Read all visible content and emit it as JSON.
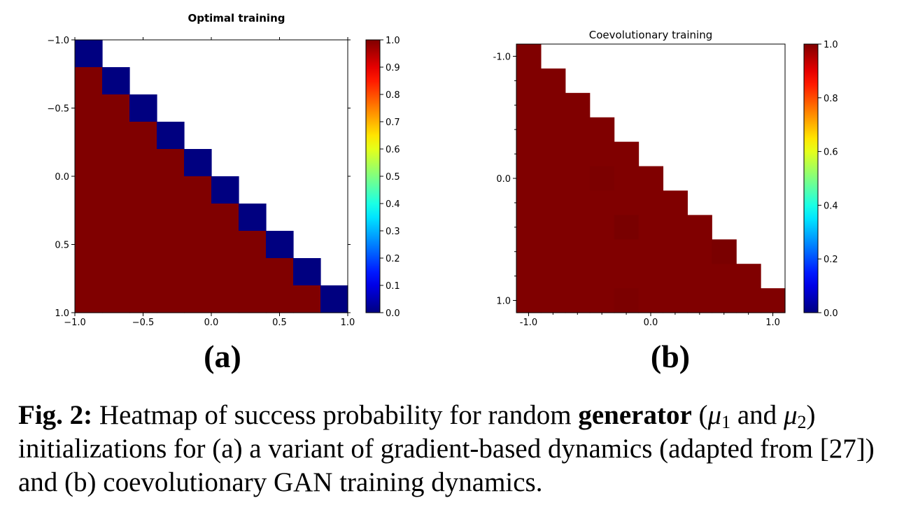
{
  "chart_data": [
    {
      "type": "heatmap",
      "title": "Optimal training",
      "panel_label": "(a)",
      "grid_size": 10,
      "x_range": [
        -1.0,
        1.0
      ],
      "y_range": [
        -1.0,
        1.0
      ],
      "y_inverted": true,
      "xticks": [
        "−1.0",
        "−0.5",
        "0.0",
        "0.5",
        "1.0"
      ],
      "xtick_values": [
        -1.0,
        -0.5,
        0.0,
        0.5,
        1.0
      ],
      "yticks": [
        "−1.0",
        "−0.5",
        "0.0",
        "0.5",
        "1.0"
      ],
      "ytick_values": [
        -1.0,
        -0.5,
        0.0,
        0.5,
        1.0
      ],
      "colorbar_ticks": [
        "0.0",
        "0.1",
        "0.2",
        "0.3",
        "0.4",
        "0.5",
        "0.6",
        "0.7",
        "0.8",
        "0.9",
        "1.0"
      ],
      "colorbar_values": [
        0,
        0.1,
        0.2,
        0.3,
        0.4,
        0.5,
        0.6,
        0.7,
        0.8,
        0.9,
        1.0
      ],
      "colormap": "jet",
      "values": [
        [
          0,
          null,
          null,
          null,
          null,
          null,
          null,
          null,
          null,
          null
        ],
        [
          1,
          0,
          null,
          null,
          null,
          null,
          null,
          null,
          null,
          null
        ],
        [
          1,
          1,
          0,
          null,
          null,
          null,
          null,
          null,
          null,
          null
        ],
        [
          1,
          1,
          1,
          0,
          null,
          null,
          null,
          null,
          null,
          null
        ],
        [
          1,
          1,
          1,
          1,
          0,
          null,
          null,
          null,
          null,
          null
        ],
        [
          1,
          1,
          1,
          1,
          1,
          0,
          null,
          null,
          null,
          null
        ],
        [
          1,
          1,
          1,
          1,
          1,
          1,
          0,
          null,
          null,
          null
        ],
        [
          1,
          1,
          1,
          1,
          1,
          1,
          1,
          0,
          null,
          null
        ],
        [
          1,
          1,
          1,
          1,
          1,
          1,
          1,
          1,
          0,
          null
        ],
        [
          1,
          1,
          1,
          1,
          1,
          1,
          1,
          1,
          1,
          0
        ]
      ]
    },
    {
      "type": "heatmap",
      "title": "Coevolutionary training",
      "panel_label": "(b)",
      "grid_size": 11,
      "x_range": [
        -1.1,
        1.1
      ],
      "y_range": [
        -1.1,
        1.1
      ],
      "y_inverted": true,
      "xticks": [
        "-1.0",
        "0.0",
        "1.0"
      ],
      "xtick_values": [
        -1.0,
        0.0,
        1.0
      ],
      "yticks": [
        "-1.0",
        "0.0",
        "1.0"
      ],
      "ytick_values": [
        -1.0,
        0.0,
        1.0
      ],
      "minor_tick_step": 0.2,
      "colorbar_ticks": [
        "0.0",
        "0.2",
        "0.4",
        "0.6",
        "0.8",
        "1.0"
      ],
      "colorbar_values": [
        0,
        0.2,
        0.4,
        0.6,
        0.8,
        1.0
      ],
      "colormap": "jet",
      "values": [
        [
          1,
          null,
          null,
          null,
          null,
          null,
          null,
          null,
          null,
          null,
          null
        ],
        [
          1,
          1,
          null,
          null,
          null,
          null,
          null,
          null,
          null,
          null,
          null
        ],
        [
          1,
          1,
          1,
          null,
          null,
          null,
          null,
          null,
          null,
          null,
          null
        ],
        [
          1,
          1,
          1,
          1,
          null,
          null,
          null,
          null,
          null,
          null,
          null
        ],
        [
          1,
          1,
          1,
          1,
          1,
          null,
          null,
          null,
          null,
          null,
          null
        ],
        [
          1,
          1,
          1,
          0.985,
          1,
          1,
          null,
          null,
          null,
          null,
          null
        ],
        [
          1,
          1,
          1,
          1,
          1,
          1,
          1,
          null,
          null,
          null,
          null
        ],
        [
          1,
          1,
          1,
          1,
          0.975,
          1,
          1,
          1,
          null,
          null,
          null
        ],
        [
          1,
          1,
          1,
          1,
          1,
          1,
          1,
          1,
          0.98,
          null,
          null
        ],
        [
          1,
          1,
          1,
          1,
          1,
          1,
          1,
          1,
          1,
          1,
          null
        ],
        [
          1,
          1,
          1,
          1,
          0.985,
          1,
          1,
          1,
          1,
          1,
          1
        ]
      ]
    }
  ],
  "caption": {
    "label": "Fig. 2:",
    "part1": " Heatmap of success probability for random ",
    "bold_word": "generator",
    "part2": " (",
    "mu": "μ",
    "sub1": "1",
    "part3": " and ",
    "sub2": "2",
    "part4": ") initializations for (a) a variant of gradient-based dynamics (adapted from [27]) and (b) coevolutionary GAN training dynamics."
  }
}
